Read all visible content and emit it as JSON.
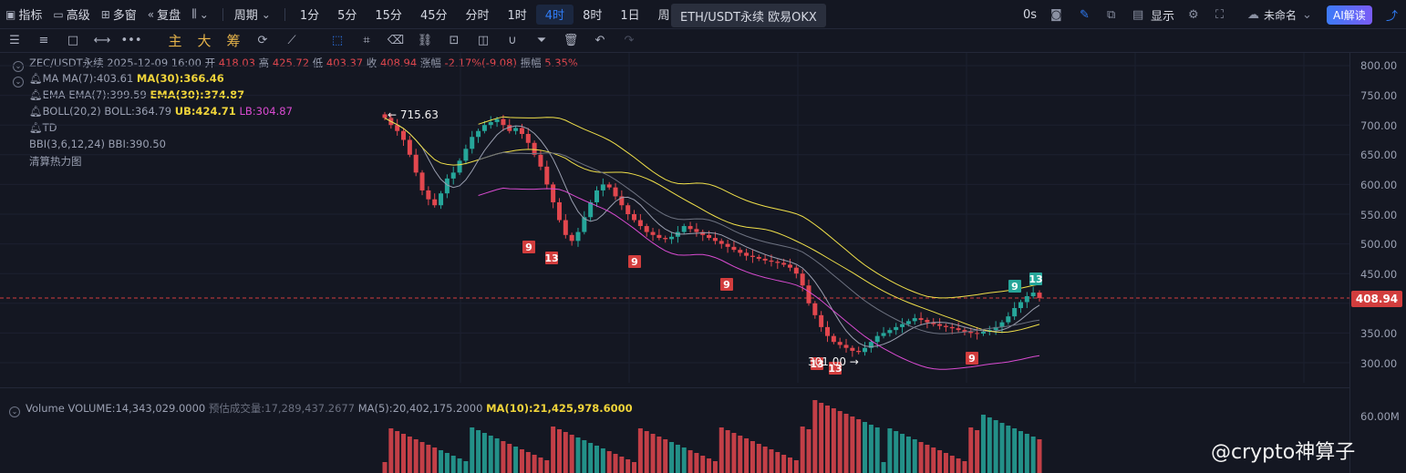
{
  "topbar": {
    "indicator_label": "指标",
    "advanced_label": "高级",
    "multiwin_label": "多窗",
    "replay_label": "复盘",
    "period_label": "周期",
    "periods": [
      "1分",
      "5分",
      "15分",
      "45分",
      "分时",
      "1时",
      "4时",
      "8时",
      "1日",
      "周"
    ],
    "active_period": "4时",
    "tooltip": "ETH/USDT永续 欧易OKX",
    "countdown": "0s",
    "display_label": "显示",
    "layout_name": "未命名",
    "ai_label": "AI解读"
  },
  "toolbar": {
    "main_label": "主",
    "large_label": "大",
    "chip_label": "筹"
  },
  "legend": {
    "symbol_line": "ZEC/USDT永续  2025-12-09 16:00",
    "open_k": "开",
    "open_v": "418.03",
    "high_k": "高",
    "high_v": "425.72",
    "low_k": "低",
    "low_v": "403.37",
    "close_k": "收",
    "close_v": "408.94",
    "chg_k": "涨幅",
    "chg_v": "-2.17%(-9.08)",
    "amp_k": "振幅",
    "amp_v": "5.35%",
    "ma_name": "MA",
    "ma7": "MA(7):403.61",
    "ma30": "MA(30):366.46",
    "ema_name": "EMA",
    "ema7": "EMA(7):399.59",
    "ema30": "EMA(30):374.87",
    "boll_name": "BOLL(20,2)",
    "boll_mid": "BOLL:364.79",
    "boll_ub": "UB:424.71",
    "boll_lb": "LB:304.87",
    "td_name": "TD",
    "bbi_name": "BBI(3,6,12,24)",
    "bbi_v": "BBI:390.50",
    "heatmap_label": "清算热力图"
  },
  "volume_legend": {
    "name": "Volume",
    "volume": "VOLUME:14,343,029.0000",
    "est": "预估成交量:17,289,437.2677",
    "ma5": "MA(5):20,402,175.2000",
    "ma10": "MA(10):21,425,978.6000"
  },
  "price_axis": [
    "800.00",
    "750.00",
    "700.00",
    "650.00",
    "600.00",
    "550.00",
    "500.00",
    "450.00",
    "350.00",
    "300.00"
  ],
  "volume_axis": [
    "60.00M"
  ],
  "current_price": "408.94",
  "high_marker": "← 715.63",
  "low_marker": "301.00 →",
  "watermark": "@crypto神算子",
  "colors": {
    "up": "#26a69a",
    "down": "#e2474e",
    "boll": "#f0e04a",
    "lb": "#d94bd1",
    "accent": "#2f7cf6"
  },
  "chart_data": {
    "type": "candlestick",
    "title": "ZEC/USDT永续 4H",
    "y_range": [
      280,
      820
    ],
    "close": [
      712,
      700,
      690,
      675,
      650,
      620,
      590,
      575,
      565,
      585,
      610,
      620,
      640,
      660,
      680,
      690,
      700,
      705,
      710,
      700,
      690,
      695,
      685,
      670,
      650,
      630,
      600,
      570,
      540,
      515,
      505,
      520,
      545,
      570,
      590,
      600,
      595,
      580,
      565,
      550,
      540,
      530,
      520,
      515,
      510,
      508,
      512,
      520,
      530,
      525,
      520,
      515,
      510,
      505,
      500,
      495,
      490,
      485,
      480,
      478,
      475,
      472,
      470,
      468,
      465,
      460,
      450,
      430,
      400,
      380,
      360,
      345,
      335,
      330,
      325,
      320,
      318,
      325,
      335,
      345,
      350,
      355,
      360,
      365,
      370,
      375,
      372,
      368,
      365,
      362,
      360,
      358,
      355,
      352,
      350,
      349,
      352,
      355,
      360,
      368,
      378,
      392,
      402,
      412,
      418,
      409
    ],
    "td_marks": [
      {
        "label": "9",
        "type": "sell"
      },
      {
        "label": "13",
        "type": "sell"
      },
      {
        "label": "9",
        "type": "sell"
      },
      {
        "label": "9",
        "type": "sell"
      },
      {
        "label": "13",
        "type": "sell"
      },
      {
        "label": "13",
        "type": "sell"
      },
      {
        "label": "9",
        "type": "sell"
      },
      {
        "label": "9",
        "type": "buy"
      },
      {
        "label": "13",
        "type": "buy"
      }
    ]
  }
}
